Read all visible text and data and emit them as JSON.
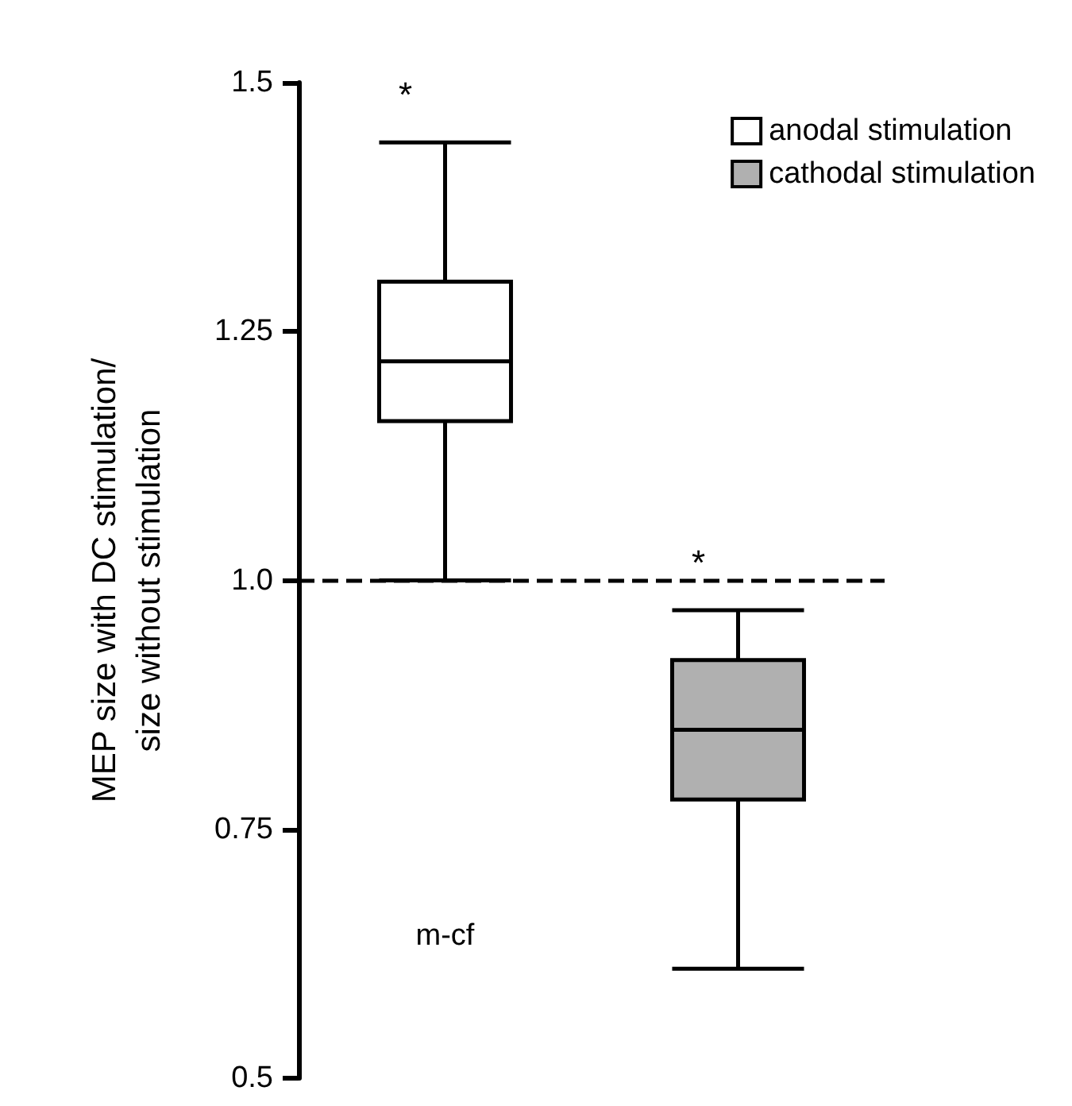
{
  "chart_data": {
    "type": "box",
    "ylabel": "MEP size with DC stimulation/\nsize without stimulation",
    "categories": [
      "m-cf",
      null
    ],
    "series": [
      {
        "name": "anodal stimulation",
        "color": "#ffffff",
        "boxes": [
          {
            "low": 1.0,
            "q1": 1.16,
            "median": 1.22,
            "q3": 1.3,
            "high": 1.44
          },
          null
        ]
      },
      {
        "name": "cathodal stimulation",
        "color": "#b0b0b0",
        "boxes": [
          null,
          {
            "low": 0.61,
            "q1": 0.78,
            "median": 0.85,
            "q3": 0.92,
            "high": 0.97
          }
        ]
      }
    ],
    "ylim": [
      0.5,
      1.5
    ],
    "yticks": [
      {
        "value": 0.5,
        "label": "0.5"
      },
      0.75,
      {
        "value": 1,
        "label": "1.0"
      },
      1.25,
      {
        "value": 1.5,
        "label": "1.5"
      }
    ],
    "ref_lines": [
      {
        "axis": "y",
        "value": 1,
        "line_style": "dashed",
        "color": "#000000"
      }
    ],
    "annotations": [
      "*",
      "*"
    ],
    "legend": "top right",
    "grid": false
  }
}
